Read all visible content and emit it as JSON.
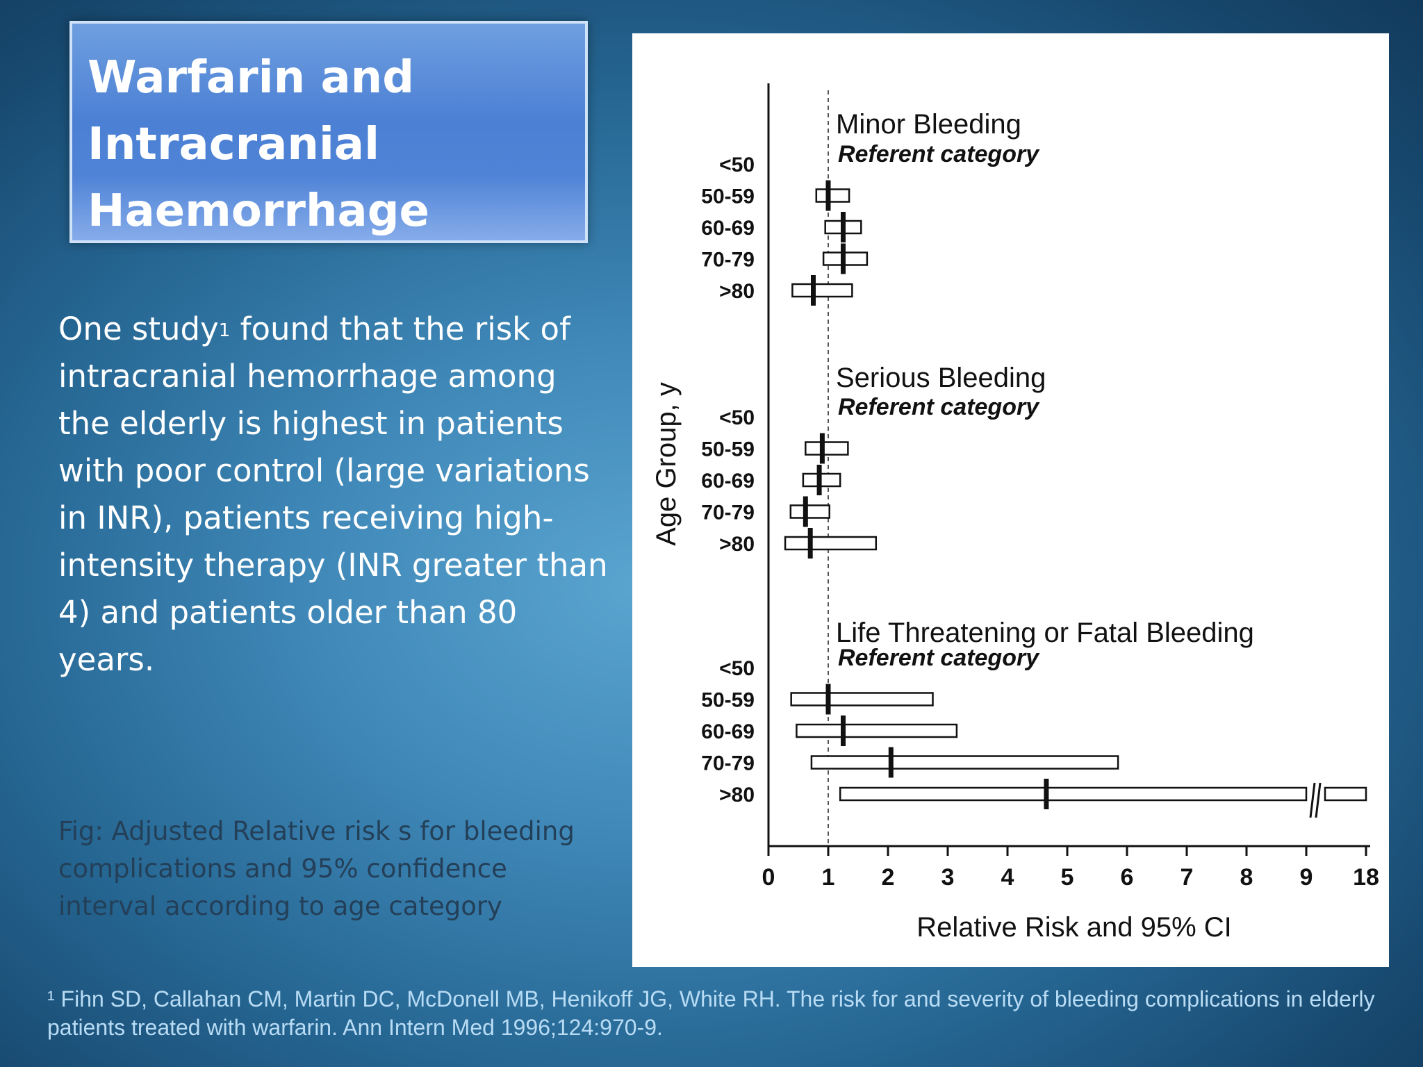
{
  "slide": {
    "title": "Warfarin and\nIntracranial\nHaemorrhage",
    "body_before": "One study",
    "body_sup": "1",
    "body_after": " found that the risk of intracranial hemorrhage among the elderly is highest in patients with poor control (large variations in INR), patients receiving high-intensity therapy (INR greater than 4) and patients older than 80 years.",
    "caption": "Fig: Adjusted Relative risk s for bleeding complications and 95% confidence interval according to age category",
    "footnote": "¹ Fihn SD, Callahan CM, Martin DC, McDonell MB, Henikoff JG, White RH. The risk for and severity of bleeding complications in elderly patients treated with warfarin. Ann Intern Med 1996;124:970-9."
  },
  "chart_data": {
    "type": "forest",
    "xlabel": "Relative Risk and 95% CI",
    "ylabel": "Age Group, y",
    "x_ticks": [
      "0",
      "1",
      "2",
      "3",
      "4",
      "5",
      "6",
      "7",
      "8",
      "9",
      "18"
    ],
    "x_break": "between 9 and 18",
    "reference_line": 1,
    "referent_label": "Referent category",
    "categories": [
      "<50",
      "50-59",
      "60-69",
      "70-79",
      ">80"
    ],
    "series": [
      {
        "name": "Minor Bleeding",
        "points": [
          {
            "group": "<50",
            "referent": true
          },
          {
            "group": "50-59",
            "rr": 1.0,
            "lo": 0.8,
            "hi": 1.35
          },
          {
            "group": "60-69",
            "rr": 1.25,
            "lo": 0.95,
            "hi": 1.55
          },
          {
            "group": "70-79",
            "rr": 1.25,
            "lo": 0.92,
            "hi": 1.65
          },
          {
            "group": ">80",
            "rr": 0.75,
            "lo": 0.4,
            "hi": 1.4
          }
        ]
      },
      {
        "name": "Serious Bleeding",
        "points": [
          {
            "group": "<50",
            "referent": true
          },
          {
            "group": "50-59",
            "rr": 0.9,
            "lo": 0.62,
            "hi": 1.33
          },
          {
            "group": "60-69",
            "rr": 0.85,
            "lo": 0.58,
            "hi": 1.2
          },
          {
            "group": "70-79",
            "rr": 0.62,
            "lo": 0.37,
            "hi": 1.02
          },
          {
            "group": ">80",
            "rr": 0.7,
            "lo": 0.28,
            "hi": 1.8
          }
        ]
      },
      {
        "name": "Life Threatening or Fatal Bleeding",
        "points": [
          {
            "group": "<50",
            "referent": true
          },
          {
            "group": "50-59",
            "rr": 1.0,
            "lo": 0.38,
            "hi": 2.75
          },
          {
            "group": "60-69",
            "rr": 1.25,
            "lo": 0.47,
            "hi": 3.15
          },
          {
            "group": "70-79",
            "rr": 2.05,
            "lo": 0.72,
            "hi": 5.85
          },
          {
            "group": ">80",
            "rr": 4.65,
            "lo": 1.2,
            "hi": 18
          }
        ]
      }
    ]
  }
}
